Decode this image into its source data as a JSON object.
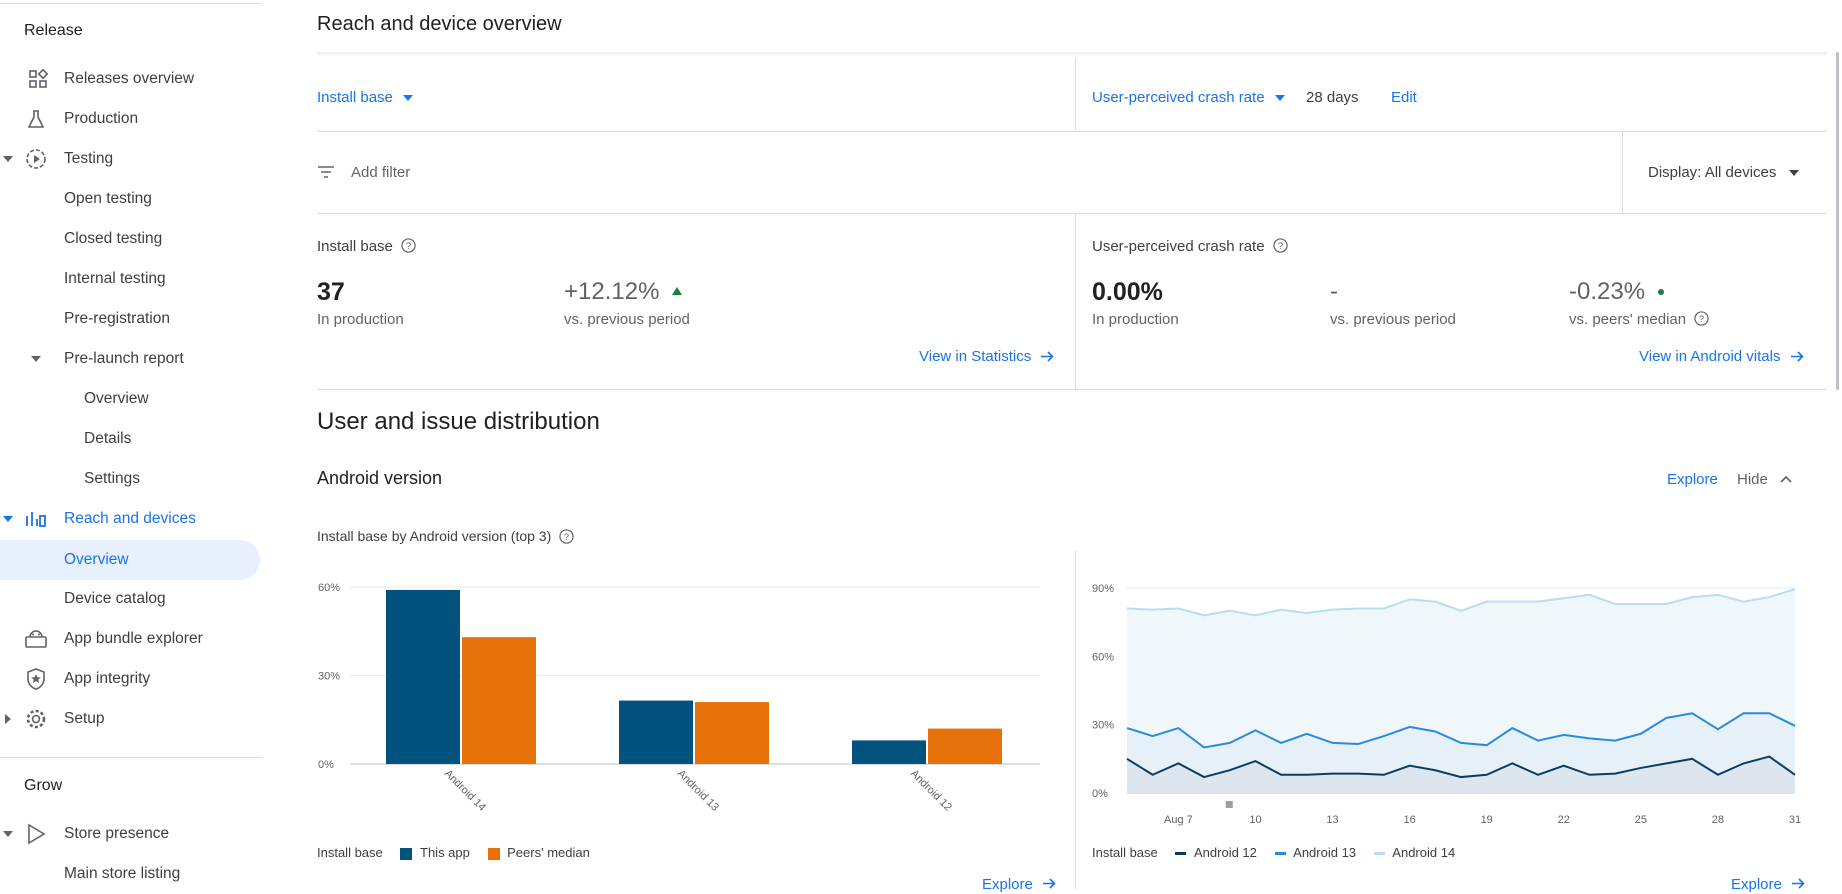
{
  "sidebar": {
    "release_header": "Release",
    "items": [
      {
        "label": "Releases overview"
      },
      {
        "label": "Production"
      },
      {
        "label": "Testing"
      },
      {
        "label": "Open testing"
      },
      {
        "label": "Closed testing"
      },
      {
        "label": "Internal testing"
      },
      {
        "label": "Pre-registration"
      },
      {
        "label": "Pre-launch report"
      },
      {
        "label": "Overview"
      },
      {
        "label": "Details"
      },
      {
        "label": "Settings"
      },
      {
        "label": "Reach and devices"
      },
      {
        "label": "Overview"
      },
      {
        "label": "Device catalog"
      },
      {
        "label": "App bundle explorer"
      },
      {
        "label": "App integrity"
      },
      {
        "label": "Setup"
      },
      {
        "label": "Store presence"
      },
      {
        "label": "Main store listing"
      }
    ],
    "grow_header": "Grow"
  },
  "page": {
    "title": "Reach and device overview",
    "install_base_dropdown": "Install base",
    "crash_rate_dropdown": "User-perceived crash rate",
    "period": "28 days",
    "edit": "Edit",
    "add_filter": "Add filter",
    "display": "Display: All devices"
  },
  "install_card": {
    "title": "Install base",
    "value": "37",
    "value_label": "In production",
    "change": "+12.12%",
    "change_label": "vs. previous period",
    "link": "View in Statistics"
  },
  "crash_card": {
    "title": "User-perceived crash rate",
    "value": "0.00%",
    "value_label": "In production",
    "change": "-",
    "change_label": "vs. previous period",
    "peer": "-0.23%",
    "peer_label": "vs. peers' median",
    "link": "View in Android vitals"
  },
  "distribution": {
    "title": "User and issue distribution",
    "section": "Android version",
    "explore": "Explore",
    "hide": "Hide",
    "chart_title": "Install base by Android version (top 3)",
    "bar_legend_prefix": "Install base",
    "line_legend_prefix": "Install base",
    "explore_bottom_left": "Explore",
    "explore_bottom_right": "Explore"
  },
  "colors": {
    "this_app": "#03517f",
    "peers": "#e8710a",
    "android12": "#0b3d62",
    "android13": "#2a8bdc",
    "android14": "#b8dcf2",
    "accent": "#1a73e8"
  },
  "chart_data": [
    {
      "type": "bar",
      "categories": [
        "Android 14",
        "Android 13",
        "Android 12"
      ],
      "series": [
        {
          "name": "This app",
          "values": [
            59,
            21.5,
            8
          ]
        },
        {
          "name": "Peers' median",
          "values": [
            43,
            21,
            12
          ]
        }
      ],
      "ylim": [
        0,
        60
      ],
      "yticks": [
        "0%",
        "30%",
        "60%"
      ],
      "legend_title": "Install base",
      "grid": true
    },
    {
      "type": "area",
      "x": [
        "Aug 5",
        "Aug 6",
        "Aug 7",
        "Aug 8",
        "Aug 9",
        "Aug 10",
        "Aug 11",
        "Aug 12",
        "Aug 13",
        "Aug 14",
        "Aug 15",
        "Aug 16",
        "Aug 17",
        "Aug 18",
        "Aug 19",
        "Aug 20",
        "Aug 21",
        "Aug 22",
        "Aug 23",
        "Aug 24",
        "Aug 25",
        "Aug 26",
        "Aug 27",
        "Aug 28",
        "Aug 29",
        "Aug 30",
        "Aug 31"
      ],
      "xticks": [
        "Aug 7",
        "10",
        "13",
        "16",
        "19",
        "22",
        "25",
        "28",
        "31"
      ],
      "series": [
        {
          "name": "Android 12",
          "values": [
            15,
            8,
            13,
            7,
            10,
            14,
            8,
            8,
            8.5,
            8.5,
            8,
            12,
            10,
            7,
            8,
            13,
            8,
            12,
            8,
            8.5,
            11,
            13,
            15,
            8,
            13,
            16,
            8
          ]
        },
        {
          "name": "Android 13",
          "values": [
            28.5,
            25,
            28.5,
            20,
            22,
            27.5,
            22,
            26,
            22,
            21.5,
            25,
            29,
            27,
            22,
            21,
            28.5,
            23,
            25.5,
            24,
            23,
            26,
            33,
            35,
            28,
            35,
            35,
            29.5
          ]
        },
        {
          "name": "Android 14",
          "values": [
            81,
            80.5,
            81,
            78,
            80,
            78,
            80.5,
            79,
            80.5,
            81,
            81,
            85,
            84,
            80,
            84,
            84,
            84,
            85.5,
            87,
            83,
            83,
            83,
            86,
            87,
            84,
            86,
            89.5
          ]
        }
      ],
      "ylim": [
        0,
        90
      ],
      "yticks": [
        "0%",
        "30%",
        "60%",
        "90%"
      ],
      "legend_title": "Install base",
      "grid": true
    }
  ]
}
